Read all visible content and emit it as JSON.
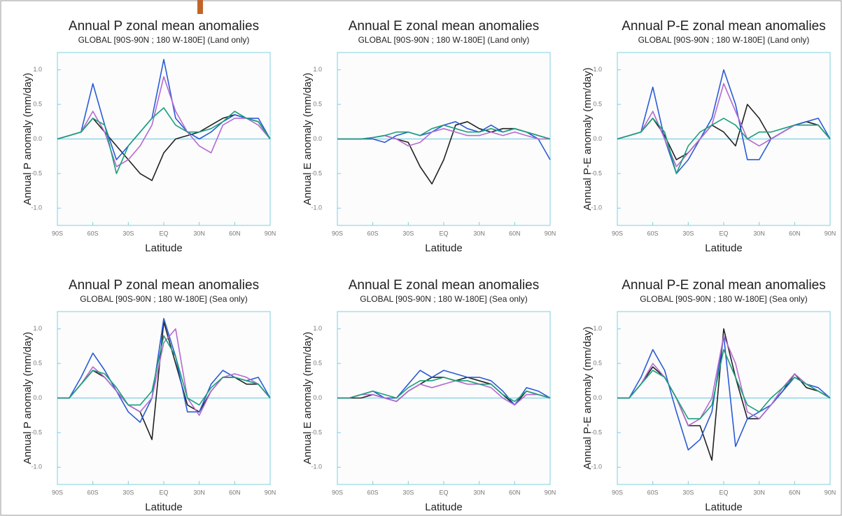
{
  "chart_data": [
    {
      "type": "line",
      "title": "Annual P zonal mean anomalies",
      "subtitle": "GLOBAL [90S-90N ; 180 W-180E] (Land only)",
      "x_label": "Latitude",
      "y_label": "Annual P anomaly (mm/day)",
      "x": [
        -90,
        -80,
        -70,
        -60,
        -50,
        -40,
        -30,
        -20,
        -10,
        0,
        10,
        20,
        30,
        40,
        50,
        60,
        70,
        80,
        90
      ],
      "xlim": [
        -90,
        90
      ],
      "xticks": [
        {
          "value": -90,
          "label": "90S"
        },
        {
          "value": -60,
          "label": "60S"
        },
        {
          "value": -30,
          "label": "30S"
        },
        {
          "value": 0,
          "label": "EQ"
        },
        {
          "value": 30,
          "label": "30N"
        },
        {
          "value": 60,
          "label": "60N"
        },
        {
          "value": 90,
          "label": "90N"
        }
      ],
      "ylim": [
        -1.25,
        1.25
      ],
      "yticks": [
        {
          "value": -1,
          "label": "-1.0"
        },
        {
          "value": -0.5,
          "label": "-0.5"
        },
        {
          "value": 0,
          "label": "0.0"
        },
        {
          "value": 0.5,
          "label": "0.5"
        },
        {
          "value": 1,
          "label": "1.0"
        }
      ],
      "series": [
        {
          "color": "#222222",
          "values": [
            0,
            0.05,
            0.1,
            0.3,
            0.1,
            -0.1,
            -0.3,
            -0.5,
            -0.6,
            -0.2,
            0,
            0.05,
            0.1,
            0.2,
            0.3,
            0.35,
            0.3,
            0.25,
            0
          ]
        },
        {
          "color": "#2a5bd7",
          "values": [
            0,
            0.05,
            0.1,
            0.8,
            0.2,
            -0.3,
            -0.1,
            0.1,
            0.3,
            1.15,
            0.3,
            0.1,
            0,
            0.1,
            0.25,
            0.35,
            0.3,
            0.3,
            0
          ]
        },
        {
          "color": "#b56ad0",
          "values": [
            0,
            0.05,
            0.1,
            0.4,
            0.1,
            -0.4,
            -0.3,
            -0.1,
            0.2,
            0.9,
            0.4,
            0.1,
            -0.1,
            -0.2,
            0.2,
            0.3,
            0.3,
            0.2,
            0
          ]
        },
        {
          "color": "#1aa07a",
          "values": [
            0,
            0.05,
            0.1,
            0.3,
            0.2,
            -0.5,
            -0.1,
            0.1,
            0.3,
            0.45,
            0.2,
            0.1,
            0.1,
            0.15,
            0.25,
            0.4,
            0.3,
            0.25,
            0
          ]
        }
      ]
    },
    {
      "type": "line",
      "title": "Annual E zonal mean anomalies",
      "subtitle": "GLOBAL [90S-90N ; 180 W-180E] (Land only)",
      "x_label": "Latitude",
      "y_label": "Annual E anomaly (mm/day)",
      "x": [
        -90,
        -80,
        -70,
        -60,
        -50,
        -40,
        -30,
        -20,
        -10,
        0,
        10,
        20,
        30,
        40,
        50,
        60,
        70,
        80,
        90
      ],
      "xlim": [
        -90,
        90
      ],
      "xticks": [
        {
          "value": -90,
          "label": "90S"
        },
        {
          "value": -60,
          "label": "60S"
        },
        {
          "value": -30,
          "label": "30S"
        },
        {
          "value": 0,
          "label": "EQ"
        },
        {
          "value": 30,
          "label": "30N"
        },
        {
          "value": 60,
          "label": "60N"
        },
        {
          "value": 90,
          "label": "90N"
        }
      ],
      "ylim": [
        -1.25,
        1.25
      ],
      "yticks": [
        {
          "value": -1,
          "label": "-1.0"
        },
        {
          "value": -0.5,
          "label": "-0.5"
        },
        {
          "value": 0,
          "label": "0.0"
        },
        {
          "value": 0.5,
          "label": "0.5"
        },
        {
          "value": 1,
          "label": "1.0"
        }
      ],
      "series": [
        {
          "color": "#222222",
          "values": [
            0,
            0,
            0,
            0.02,
            0.05,
            0,
            -0.05,
            -0.4,
            -0.65,
            -0.3,
            0.2,
            0.25,
            0.15,
            0.1,
            0.15,
            0.15,
            0.1,
            0.05,
            0
          ]
        },
        {
          "color": "#2a5bd7",
          "values": [
            0,
            0,
            0,
            0,
            -0.05,
            0.05,
            0.1,
            0.05,
            0.1,
            0.2,
            0.25,
            0.15,
            0.1,
            0.2,
            0.1,
            0.15,
            0.1,
            0,
            -0.3
          ]
        },
        {
          "color": "#b56ad0",
          "values": [
            0,
            0,
            0,
            0.02,
            0.05,
            0,
            -0.1,
            -0.05,
            0.1,
            0.15,
            0.1,
            0.05,
            0.05,
            0.1,
            0.05,
            0.1,
            0.05,
            0,
            0
          ]
        },
        {
          "color": "#1aa07a",
          "values": [
            0,
            0,
            0,
            0.02,
            0.05,
            0.1,
            0.1,
            0.05,
            0.15,
            0.2,
            0.15,
            0.1,
            0.1,
            0.15,
            0.1,
            0.15,
            0.1,
            0.05,
            0
          ]
        }
      ]
    },
    {
      "type": "line",
      "title": "Annual P-E zonal mean anomalies",
      "subtitle": "GLOBAL [90S-90N ; 180 W-180E] (Land only)",
      "x_label": "Latitude",
      "y_label": "Annual P-E anomaly (mm/day)",
      "x": [
        -90,
        -80,
        -70,
        -60,
        -50,
        -40,
        -30,
        -20,
        -10,
        0,
        10,
        20,
        30,
        40,
        50,
        60,
        70,
        80,
        90
      ],
      "xlim": [
        -90,
        90
      ],
      "xticks": [
        {
          "value": -90,
          "label": "90S"
        },
        {
          "value": -60,
          "label": "60S"
        },
        {
          "value": -30,
          "label": "30S"
        },
        {
          "value": 0,
          "label": "EQ"
        },
        {
          "value": 30,
          "label": "30N"
        },
        {
          "value": 60,
          "label": "60N"
        },
        {
          "value": 90,
          "label": "90N"
        }
      ],
      "ylim": [
        -1.25,
        1.25
      ],
      "yticks": [
        {
          "value": -1,
          "label": "-1.0"
        },
        {
          "value": -0.5,
          "label": "-0.5"
        },
        {
          "value": 0,
          "label": "0.0"
        },
        {
          "value": 0.5,
          "label": "0.5"
        },
        {
          "value": 1,
          "label": "1.0"
        }
      ],
      "series": [
        {
          "color": "#222222",
          "values": [
            0,
            0.05,
            0.1,
            0.3,
            0.05,
            -0.3,
            -0.2,
            0,
            0.2,
            0.1,
            -0.1,
            0.5,
            0.3,
            0,
            0.1,
            0.2,
            0.25,
            0.2,
            0
          ]
        },
        {
          "color": "#2a5bd7",
          "values": [
            0,
            0.05,
            0.1,
            0.75,
            0,
            -0.5,
            -0.3,
            0,
            0.3,
            1.0,
            0.5,
            -0.3,
            -0.3,
            0,
            0.1,
            0.2,
            0.25,
            0.3,
            0
          ]
        },
        {
          "color": "#b56ad0",
          "values": [
            0,
            0.05,
            0.1,
            0.4,
            0,
            -0.4,
            -0.2,
            0,
            0.2,
            0.8,
            0.4,
            0,
            -0.1,
            0,
            0.1,
            0.2,
            0.2,
            0.2,
            0
          ]
        },
        {
          "color": "#1aa07a",
          "values": [
            0,
            0.05,
            0.1,
            0.3,
            0.1,
            -0.5,
            -0.1,
            0.1,
            0.2,
            0.3,
            0.2,
            0,
            0.1,
            0.1,
            0.15,
            0.2,
            0.2,
            0.2,
            0
          ]
        }
      ]
    },
    {
      "type": "line",
      "title": "Annual P zonal mean anomalies",
      "subtitle": "GLOBAL [90S-90N ; 180 W-180E] (Sea only)",
      "x_label": "Latitude",
      "y_label": "Annual P anomaly (mm/day)",
      "x": [
        -90,
        -80,
        -70,
        -60,
        -50,
        -40,
        -30,
        -20,
        -10,
        0,
        10,
        20,
        30,
        40,
        50,
        60,
        70,
        80,
        90
      ],
      "xlim": [
        -90,
        90
      ],
      "xticks": [
        {
          "value": -90,
          "label": "90S"
        },
        {
          "value": -60,
          "label": "60S"
        },
        {
          "value": -30,
          "label": "30S"
        },
        {
          "value": 0,
          "label": "EQ"
        },
        {
          "value": 30,
          "label": "30N"
        },
        {
          "value": 60,
          "label": "60N"
        },
        {
          "value": 90,
          "label": "90N"
        }
      ],
      "ylim": [
        -1.25,
        1.25
      ],
      "yticks": [
        {
          "value": -1,
          "label": "-1.0"
        },
        {
          "value": -0.5,
          "label": "-0.5"
        },
        {
          "value": 0,
          "label": "0.0"
        },
        {
          "value": 0.5,
          "label": "0.5"
        },
        {
          "value": 1,
          "label": "1.0"
        }
      ],
      "series": [
        {
          "color": "#222222",
          "values": [
            0,
            0,
            0.2,
            0.4,
            0.3,
            0.1,
            -0.1,
            -0.2,
            -0.6,
            1.1,
            0.5,
            -0.1,
            -0.2,
            0.1,
            0.3,
            0.3,
            0.2,
            0.2,
            0
          ]
        },
        {
          "color": "#2a5bd7",
          "values": [
            0,
            0,
            0.3,
            0.65,
            0.4,
            0.1,
            -0.2,
            -0.35,
            0,
            1.15,
            0.6,
            -0.2,
            -0.2,
            0.2,
            0.4,
            0.3,
            0.25,
            0.3,
            0
          ]
        },
        {
          "color": "#b56ad0",
          "values": [
            0,
            0,
            0.2,
            0.45,
            0.3,
            0.1,
            -0.1,
            -0.2,
            0,
            0.8,
            1.0,
            0,
            -0.25,
            0.1,
            0.3,
            0.35,
            0.3,
            0.2,
            0
          ]
        },
        {
          "color": "#1aa07a",
          "values": [
            0,
            0,
            0.2,
            0.4,
            0.35,
            0.15,
            -0.1,
            -0.1,
            0.1,
            0.9,
            0.6,
            0,
            -0.1,
            0.15,
            0.3,
            0.3,
            0.25,
            0.2,
            0
          ]
        }
      ]
    },
    {
      "type": "line",
      "title": "Annual E zonal mean anomalies",
      "subtitle": "GLOBAL [90S-90N ; 180 W-180E] (Sea only)",
      "x_label": "Latitude",
      "y_label": "Annual E anomaly (mm/day)",
      "x": [
        -90,
        -80,
        -70,
        -60,
        -50,
        -40,
        -30,
        -20,
        -10,
        0,
        10,
        20,
        30,
        40,
        50,
        60,
        70,
        80,
        90
      ],
      "xlim": [
        -90,
        90
      ],
      "xticks": [
        {
          "value": -90,
          "label": "90S"
        },
        {
          "value": -60,
          "label": "60S"
        },
        {
          "value": -30,
          "label": "30S"
        },
        {
          "value": 0,
          "label": "EQ"
        },
        {
          "value": 30,
          "label": "30N"
        },
        {
          "value": 60,
          "label": "60N"
        },
        {
          "value": 90,
          "label": "90N"
        }
      ],
      "ylim": [
        -1.25,
        1.25
      ],
      "yticks": [
        {
          "value": -1,
          "label": "-1.0"
        },
        {
          "value": -0.5,
          "label": "-0.5"
        },
        {
          "value": 0,
          "label": "0.0"
        },
        {
          "value": 0.5,
          "label": "0.5"
        },
        {
          "value": 1,
          "label": "1.0"
        }
      ],
      "series": [
        {
          "color": "#222222",
          "values": [
            0,
            0,
            0,
            0.05,
            0,
            -0.05,
            0.1,
            0.2,
            0.3,
            0.3,
            0.25,
            0.3,
            0.25,
            0.2,
            0.05,
            -0.1,
            0.1,
            0.05,
            0
          ]
        },
        {
          "color": "#2a5bd7",
          "values": [
            0,
            0,
            0.05,
            0.1,
            0,
            0,
            0.2,
            0.4,
            0.3,
            0.4,
            0.35,
            0.3,
            0.3,
            0.25,
            0.1,
            -0.1,
            0.15,
            0.1,
            0
          ]
        },
        {
          "color": "#b56ad0",
          "values": [
            0,
            0,
            0.05,
            0.05,
            0,
            -0.05,
            0.1,
            0.2,
            0.15,
            0.2,
            0.25,
            0.2,
            0.2,
            0.15,
            0,
            -0.1,
            0.05,
            0.05,
            0
          ]
        },
        {
          "color": "#1aa07a",
          "values": [
            0,
            0,
            0.05,
            0.1,
            0.05,
            0,
            0.15,
            0.25,
            0.25,
            0.3,
            0.25,
            0.25,
            0.2,
            0.2,
            0.05,
            -0.05,
            0.1,
            0.05,
            0
          ]
        }
      ]
    },
    {
      "type": "line",
      "title": "Annual P-E zonal mean anomalies",
      "subtitle": "GLOBAL [90S-90N ; 180 W-180E] (Sea only)",
      "x_label": "Latitude",
      "y_label": "Annual P-E anomaly (mm/day)",
      "x": [
        -90,
        -80,
        -70,
        -60,
        -50,
        -40,
        -30,
        -20,
        -10,
        0,
        10,
        20,
        30,
        40,
        50,
        60,
        70,
        80,
        90
      ],
      "xlim": [
        -90,
        90
      ],
      "xticks": [
        {
          "value": -90,
          "label": "90S"
        },
        {
          "value": -60,
          "label": "60S"
        },
        {
          "value": -30,
          "label": "30S"
        },
        {
          "value": 0,
          "label": "EQ"
        },
        {
          "value": 30,
          "label": "30N"
        },
        {
          "value": 60,
          "label": "60N"
        },
        {
          "value": 90,
          "label": "90N"
        }
      ],
      "ylim": [
        -1.25,
        1.25
      ],
      "yticks": [
        {
          "value": -1,
          "label": "-1.0"
        },
        {
          "value": -0.5,
          "label": "-0.5"
        },
        {
          "value": 0,
          "label": "0.0"
        },
        {
          "value": 0.5,
          "label": "0.5"
        },
        {
          "value": 1,
          "label": "1.0"
        }
      ],
      "series": [
        {
          "color": "#222222",
          "values": [
            0,
            0,
            0.2,
            0.45,
            0.3,
            0,
            -0.4,
            -0.4,
            -0.9,
            1.0,
            0.3,
            -0.3,
            -0.3,
            -0.1,
            0.1,
            0.35,
            0.15,
            0.1,
            0
          ]
        },
        {
          "color": "#2a5bd7",
          "values": [
            0,
            0,
            0.3,
            0.7,
            0.4,
            -0.2,
            -0.75,
            -0.6,
            -0.2,
            0.9,
            -0.7,
            -0.3,
            -0.2,
            -0.1,
            0.1,
            0.3,
            0.2,
            0.15,
            0
          ]
        },
        {
          "color": "#b56ad0",
          "values": [
            0,
            0,
            0.2,
            0.5,
            0.3,
            0,
            -0.4,
            -0.3,
            0,
            0.9,
            0.5,
            -0.2,
            -0.3,
            -0.1,
            0.15,
            0.35,
            0.2,
            0.1,
            0
          ]
        },
        {
          "color": "#1aa07a",
          "values": [
            0,
            0,
            0.2,
            0.4,
            0.3,
            0,
            -0.3,
            -0.3,
            -0.1,
            0.7,
            0.3,
            -0.1,
            -0.2,
            0,
            0.15,
            0.3,
            0.2,
            0.1,
            0
          ]
        }
      ]
    }
  ]
}
